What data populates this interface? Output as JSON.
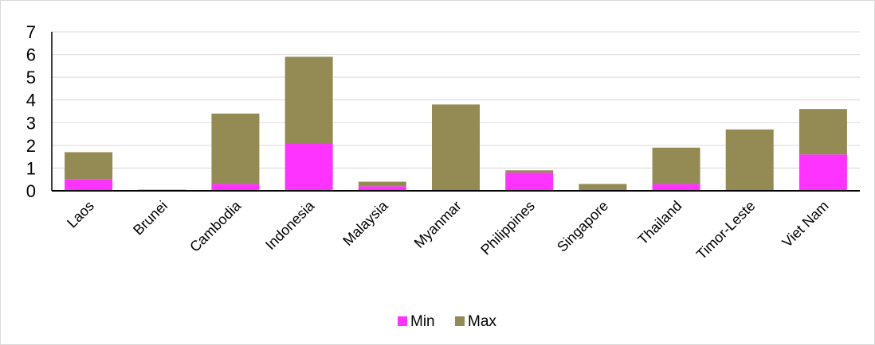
{
  "chart_data": {
    "type": "bar",
    "stacked": true,
    "title": "",
    "xlabel": "",
    "ylabel": "",
    "ylim": [
      0,
      7
    ],
    "yticks": [
      0,
      1,
      2,
      3,
      4,
      5,
      6,
      7
    ],
    "grid": true,
    "legend_position": "bottom",
    "categories": [
      "Laos",
      "Brunei",
      "Cambodia",
      "Indonesia",
      "Malaysia",
      "Myanmar",
      "Philippines",
      "Singapore",
      "Thailand",
      "Timor-Leste",
      "Viet Nam"
    ],
    "series": [
      {
        "name": "Min",
        "color": "#ff33ff",
        "values": [
          0.5,
          0.0,
          0.3,
          2.1,
          0.2,
          0.0,
          0.8,
          0.0,
          0.3,
          0.0,
          1.6
        ]
      },
      {
        "name": "Max",
        "color": "#948a54",
        "values": [
          1.2,
          0.05,
          3.1,
          3.8,
          0.2,
          3.8,
          0.1,
          0.3,
          1.6,
          2.7,
          2.0
        ]
      }
    ]
  }
}
